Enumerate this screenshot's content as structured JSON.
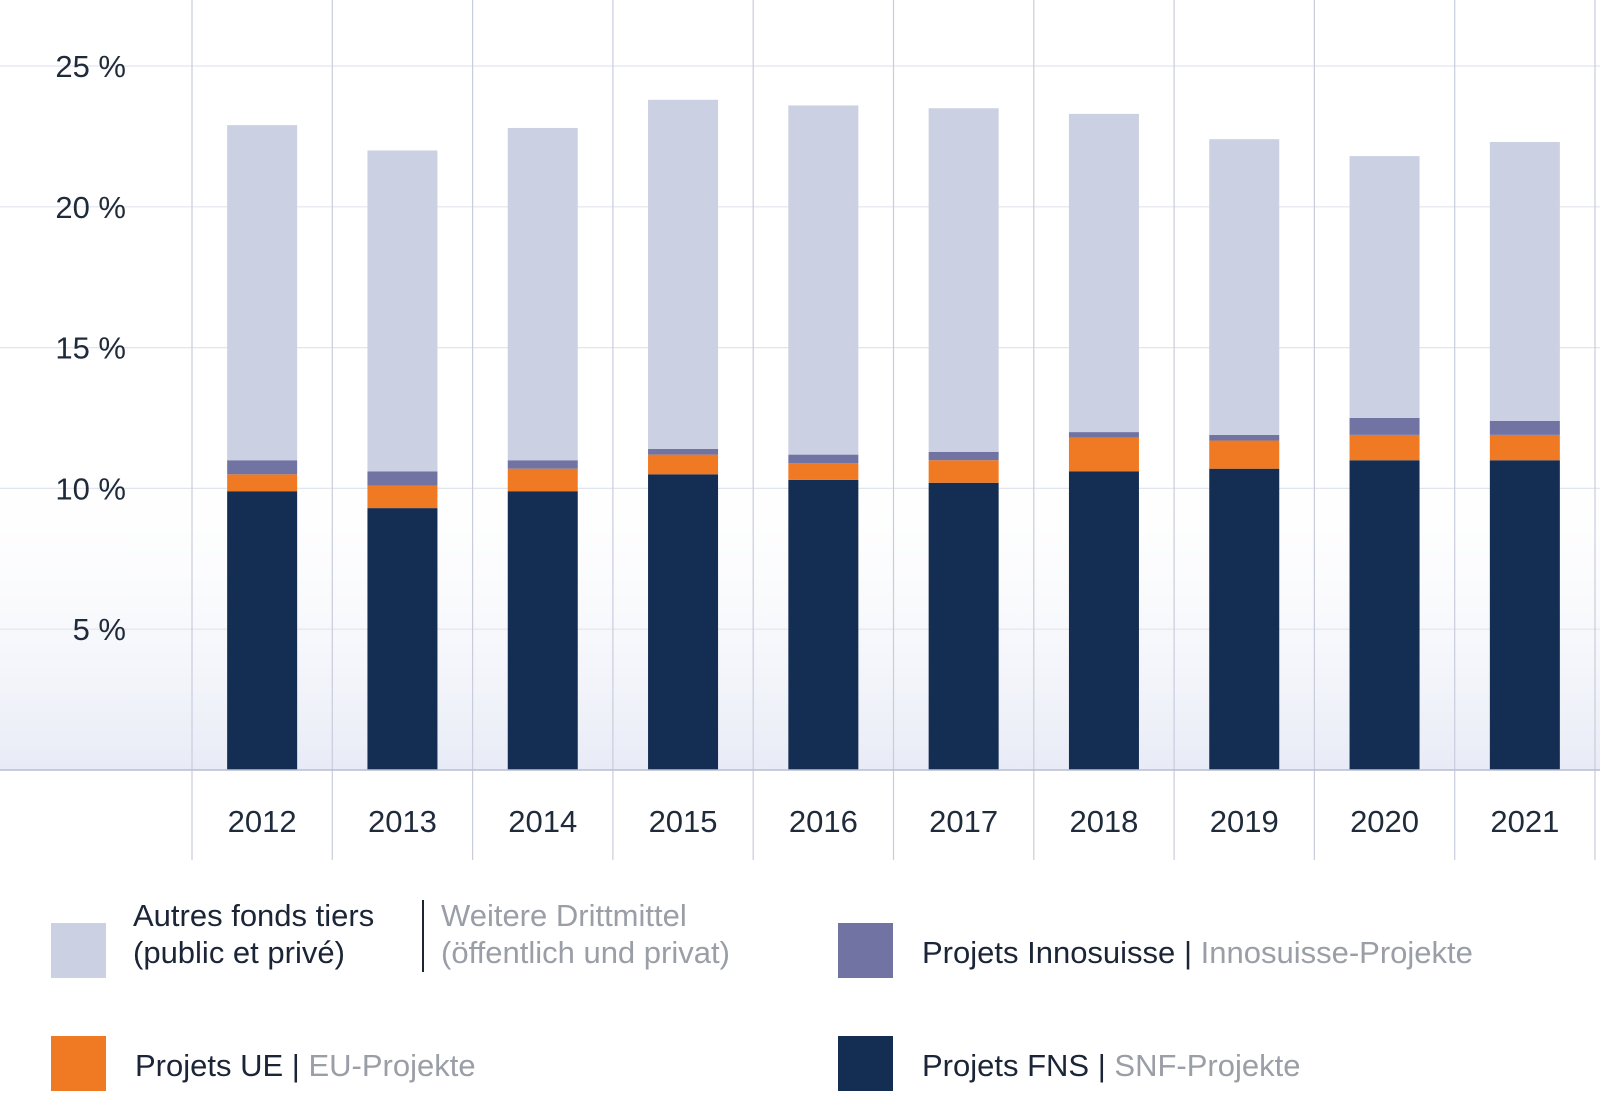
{
  "chart_data": {
    "type": "bar",
    "stacked": true,
    "categories": [
      "2012",
      "2013",
      "2014",
      "2015",
      "2016",
      "2017",
      "2018",
      "2019",
      "2020",
      "2021"
    ],
    "y_ticks": [
      5,
      10,
      15,
      20,
      25
    ],
    "y_tick_labels": [
      "5 %",
      "10 %",
      "15 %",
      "20 %",
      "25 %"
    ],
    "ylim": [
      0,
      25
    ],
    "grid": true,
    "series": [
      {
        "key": "fns",
        "name": "Projets FNS | SNF-Projekte",
        "color": "#142d52",
        "values": [
          9.9,
          9.3,
          9.9,
          10.5,
          10.3,
          10.2,
          10.6,
          10.7,
          11.0,
          11.0
        ]
      },
      {
        "key": "ue",
        "name": "Projets UE | EU-Projekte",
        "color": "#f07a24",
        "values": [
          0.6,
          0.8,
          0.8,
          0.7,
          0.6,
          0.8,
          1.2,
          1.0,
          0.9,
          0.9
        ]
      },
      {
        "key": "innosuisse",
        "name": "Projets Innosuisse | Innosuisse-Projekte",
        "color": "#7174a3",
        "values": [
          0.5,
          0.5,
          0.3,
          0.2,
          0.3,
          0.3,
          0.2,
          0.2,
          0.6,
          0.5
        ]
      },
      {
        "key": "autres",
        "name": "Autres fonds tiers (public et privé) | Weitere Drittmittel (öffentlich und privat)",
        "color": "#cbd0e2",
        "values": [
          11.9,
          11.4,
          11.8,
          12.4,
          12.4,
          12.2,
          11.3,
          10.5,
          9.3,
          9.9
        ]
      }
    ]
  },
  "legend": {
    "autres": {
      "fr_line1": "Autres fonds tiers",
      "fr_line2": "(public et privé)",
      "de_line1": "Weitere Drittmittel",
      "de_line2": "(öffentlich und privat)",
      "color": "#cbd0e2"
    },
    "innosuisse": {
      "fr": "Projets Innosuisse",
      "sep": "|",
      "de": "Innosuisse-Projekte",
      "color": "#7174a3"
    },
    "ue": {
      "fr": "Projets UE",
      "sep": "|",
      "de": "EU-Projekte",
      "color": "#f07a24"
    },
    "fns": {
      "fr": "Projets FNS",
      "sep": "|",
      "de": "SNF-Projekte",
      "color": "#142d52"
    }
  }
}
